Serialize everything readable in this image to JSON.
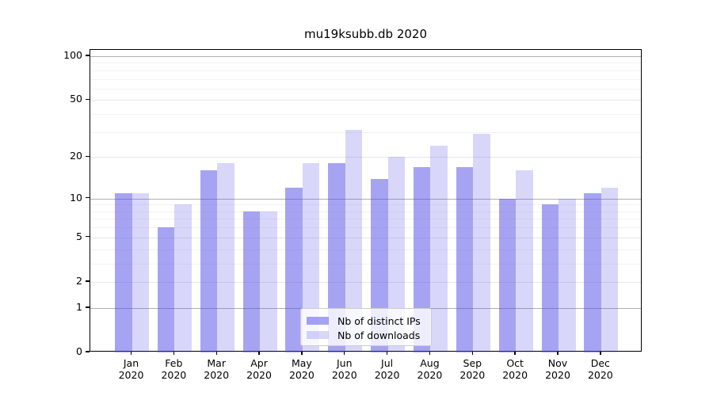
{
  "chart_data": {
    "type": "bar",
    "title": "mu19ksubb.db 2020",
    "categories": [
      "Jan",
      "Feb",
      "Mar",
      "Apr",
      "May",
      "Jun",
      "Jul",
      "Aug",
      "Sep",
      "Oct",
      "Nov",
      "Dec"
    ],
    "year_label": "2020",
    "series": [
      {
        "name": "Nb of distinct IPs",
        "color": "#4d49e6",
        "alpha": 0.5,
        "values": [
          11,
          6,
          16,
          8,
          12,
          18,
          14,
          17,
          17,
          10,
          9,
          11
        ]
      },
      {
        "name": "Nb of downloads",
        "color": "#4d49e6",
        "alpha": 0.22,
        "values": [
          11,
          9,
          18,
          8,
          18,
          31,
          20,
          24,
          29,
          16,
          10,
          12
        ]
      }
    ],
    "xlabel": "",
    "ylabel": "",
    "yscale": "log1p",
    "ylim": [
      0,
      110
    ],
    "yticks": [
      0,
      1,
      2,
      5,
      10,
      20,
      50,
      100
    ],
    "gridlines": {
      "major": [
        1,
        10,
        100
      ],
      "mid": [
        2,
        5,
        20,
        50
      ],
      "minor": [
        3,
        4,
        6,
        7,
        8,
        9,
        30,
        40,
        60,
        70,
        80,
        90
      ]
    },
    "grid": "horizontal",
    "legend_position": "lower center"
  },
  "colors": {
    "major_grid": "#b0b0b0",
    "mid_grid": "#e7e6ea",
    "minor_grid": "#f5f1f2",
    "axis": "#000000",
    "text": "#000000",
    "legend_border": "#cccccc"
  }
}
